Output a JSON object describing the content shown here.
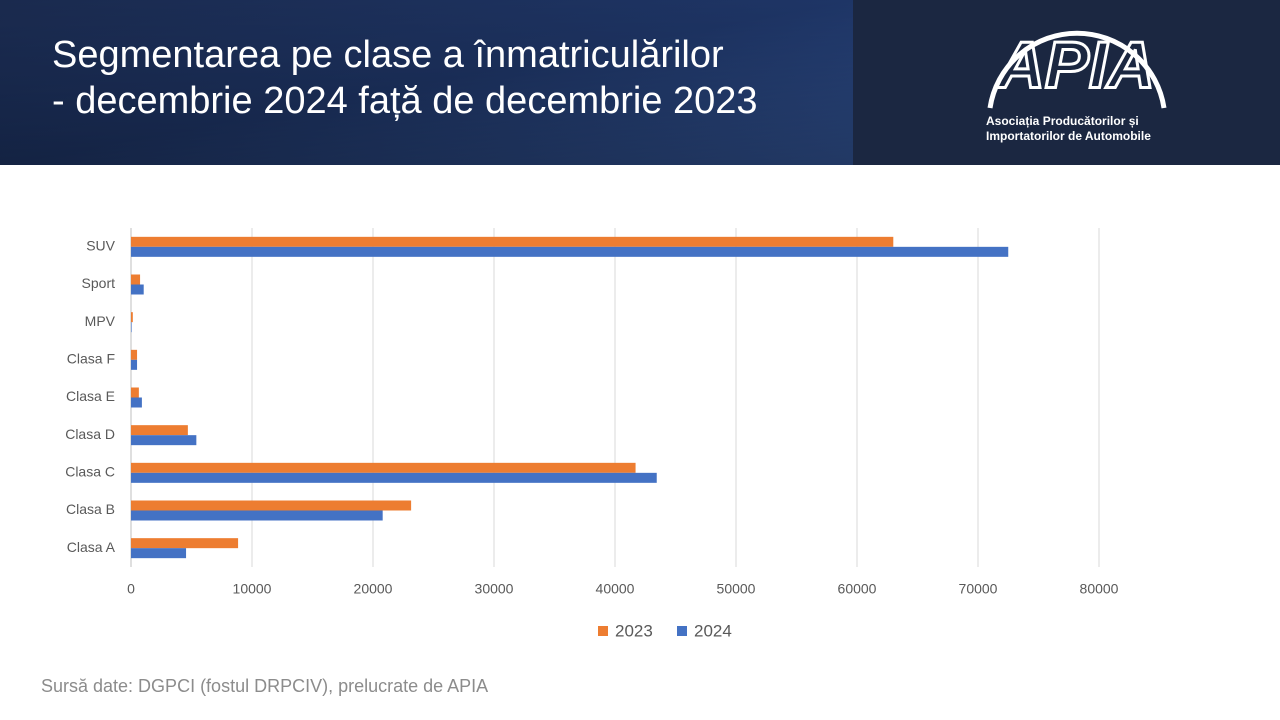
{
  "header": {
    "title_lines": [
      "Segmentarea pe clase a înmatriculărilor",
      "- decembrie 2024 față de decembrie 2023"
    ]
  },
  "logo": {
    "name": "APIA",
    "lines": [
      "Asociația Producătorilor și",
      "Importatorilor de Automobile"
    ]
  },
  "chart_data": {
    "type": "bar",
    "orientation": "horizontal",
    "categories": [
      "Clasa A",
      "Clasa B",
      "Clasa C",
      "Clasa D",
      "Clasa E",
      "Clasa F",
      "MPV",
      "Sport",
      "SUV"
    ],
    "series": [
      {
        "name": "2023",
        "color": "#ed7d31",
        "values": [
          8850,
          23150,
          41700,
          4700,
          650,
          500,
          150,
          750,
          63000
        ]
      },
      {
        "name": "2024",
        "color": "#4472c4",
        "values": [
          4550,
          20800,
          43450,
          5400,
          900,
          500,
          50,
          1050,
          72500
        ]
      }
    ],
    "xlim": [
      0,
      80000
    ],
    "xticks": [
      0,
      10000,
      20000,
      30000,
      40000,
      50000,
      60000,
      70000,
      80000
    ],
    "grid": true,
    "legend": "bottom"
  },
  "footer": {
    "source": "Sursă date: DGPCI (fostul DRPCIV), prelucrate de APIA"
  }
}
